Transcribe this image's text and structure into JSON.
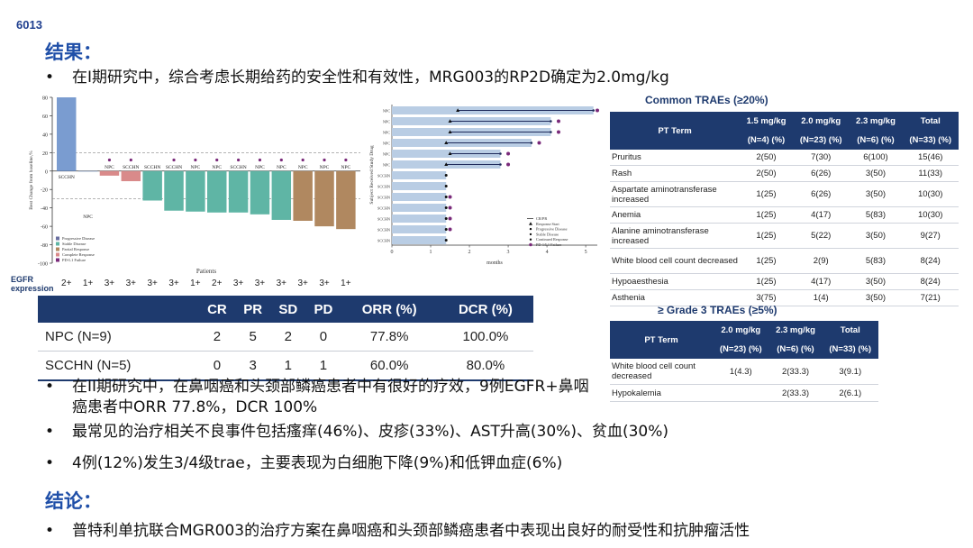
{
  "slide_id": "6013",
  "results_title": "结果：",
  "bullet_main": "在I期研究中，综合考虑长期给药的安全性和有效性，MRG003的RP2D确定为2.0mg/kg",
  "waterfall": {
    "ylabel": "Best Change from baseline,%",
    "xlabel": "Patients",
    "y_ticks": [
      "80",
      "60",
      "40",
      "20",
      "0",
      "-20",
      "-40",
      "-60",
      "-80",
      "-100"
    ],
    "legend": [
      "Progressive Disease",
      "Stable Disease",
      "Partial Response",
      "Complete Response",
      "PD-L1 Failure"
    ],
    "egfr_label": "EGFR\nexpression",
    "egfr_values": [
      "2+",
      "1+",
      "3+",
      "3+",
      "3+",
      "3+",
      "1+",
      "2+",
      "3+",
      "3+",
      "3+",
      "3+",
      "3+",
      "1+"
    ]
  },
  "swimmer": {
    "ylabel": "Subject Received Study Drug",
    "xlabel": "months",
    "x_ticks": [
      "0",
      "1",
      "2",
      "3",
      "4",
      "5"
    ],
    "legend": [
      "CR/PR",
      "Response Start",
      "Progressive Disease",
      "Stable Disease",
      "Continued Response",
      "PD-1/L1 Failure"
    ]
  },
  "chart_data": [
    {
      "type": "bar",
      "title": "",
      "xlabel": "Patients",
      "ylabel": "Best Change from baseline,%",
      "ylim": [
        -100,
        80
      ],
      "categories": [
        "SCCHN",
        "NPC",
        "NPC",
        "SCCHN",
        "SCCHN",
        "SCCHN",
        "NPC",
        "NPC",
        "SCCHN",
        "NPC",
        "NPC",
        "NPC",
        "NPC",
        "NPC"
      ],
      "values": [
        80,
        0,
        -5,
        -11,
        -32,
        -43,
        -44,
        -45,
        -45,
        -47,
        -53,
        -54,
        -60,
        -63
      ],
      "bar_colors": [
        "#7a9cd0",
        "#7a9cd0",
        "#d98a8a",
        "#d98a8a",
        "#5fb5a5",
        "#5fb5a5",
        "#5fb5a5",
        "#5fb5a5",
        "#5fb5a5",
        "#5fb5a5",
        "#5fb5a5",
        "#b08860",
        "#b08860",
        "#b08860"
      ],
      "pdl1_failure_markers": [
        false,
        false,
        true,
        true,
        false,
        true,
        true,
        true,
        true,
        true,
        true,
        true,
        true,
        true
      ],
      "reference_lines": [
        20,
        -30
      ],
      "grid": false,
      "legend_position": "bottom-left"
    },
    {
      "type": "bar",
      "title": "",
      "xlabel": "months",
      "ylabel": "Subject Received Study Drug",
      "xlim": [
        0,
        5.3
      ],
      "categories": [
        "NPC",
        "NPC",
        "NPC",
        "NPC",
        "NPC",
        "NPC",
        "SCCHN",
        "SCCHN",
        "SCCHN",
        "SCCHN",
        "SCCHN",
        "SCCHN",
        "SCCHN"
      ],
      "values": [
        5.2,
        4.1,
        4.1,
        3.6,
        2.8,
        2.8,
        1.4,
        1.4,
        1.4,
        1.4,
        1.4,
        1.4,
        1.4
      ],
      "response_start": [
        1.7,
        1.5,
        1.5,
        1.4,
        1.5,
        1.4,
        null,
        null,
        null,
        null,
        null,
        null,
        null
      ],
      "pd1_failure": [
        5.3,
        4.3,
        4.3,
        3.8,
        3.0,
        3.0,
        null,
        null,
        1.5,
        1.5,
        1.5,
        1.5,
        null
      ],
      "legend_position": "right"
    }
  ],
  "resp_table": {
    "headers": [
      "",
      "CR",
      "PR",
      "SD",
      "PD",
      "ORR (%)",
      "DCR (%)"
    ],
    "rows": [
      [
        "NPC (N=9)",
        "2",
        "5",
        "2",
        "0",
        "77.8%",
        "100.0%"
      ],
      [
        "SCCHN (N=5)",
        "0",
        "3",
        "1",
        "1",
        "60.0%",
        "80.0%"
      ]
    ]
  },
  "traes": {
    "title": "Common TRAEs (≥20%)",
    "header_pt": "PT Term",
    "header_doses": [
      "1.5 mg/kg",
      "2.0 mg/kg",
      "2.3 mg/kg",
      "Total"
    ],
    "header_ns": [
      "(N=4) (%)",
      "(N=23) (%)",
      "(N=6) (%)",
      "(N=33) (%)"
    ],
    "rows": [
      [
        "Pruritus",
        "2(50)",
        "7(30)",
        "6(100)",
        "15(46)"
      ],
      [
        "Rash",
        "2(50)",
        "6(26)",
        "3(50)",
        "11(33)"
      ],
      [
        "Aspartate aminotransferase increased",
        "1(25)",
        "6(26)",
        "3(50)",
        "10(30)"
      ],
      [
        "Anemia",
        "1(25)",
        "4(17)",
        "5(83)",
        "10(30)"
      ],
      [
        "Alanine aminotransferase increased",
        "1(25)",
        "5(22)",
        "3(50)",
        "9(27)"
      ],
      [
        "White blood cell count decreased",
        "1(25)",
        "2(9)",
        "5(83)",
        "8(24)"
      ],
      [
        "Hypoaesthesia",
        "1(25)",
        "4(17)",
        "3(50)",
        "8(24)"
      ],
      [
        "Asthenia",
        "3(75)",
        "1(4)",
        "3(50)",
        "7(21)"
      ]
    ]
  },
  "grade3": {
    "title": "≥ Grade 3 TRAEs (≥5%)",
    "header_pt": "PT Term",
    "header_doses": [
      "2.0 mg/kg",
      "2.3 mg/kg",
      "Total"
    ],
    "header_ns": [
      "(N=23) (%)",
      "(N=6) (%)",
      "(N=33) (%)"
    ],
    "rows": [
      [
        "White blood cell count decreased",
        "1(4.3)",
        "2(33.3)",
        "3(9.1)"
      ],
      [
        "Hypokalemia",
        "",
        "2(33.3)",
        "2(6.1)"
      ]
    ]
  },
  "bullets": [
    "在II期研究中，在鼻咽癌和头颈部鳞癌患者中有很好的疗效，9例EGFR+鼻咽癌患者中ORR 77.8%，DCR 100%",
    "最常见的治疗相关不良事件包括瘙痒(46%)、皮疹(33%)、AST升高(30%)、贫血(30%)",
    "4例(12%)发生3/4级trae，主要表现为白细胞下降(9%)和低钾血症(6%)"
  ],
  "conclusion_title": "结论：",
  "conclusion_bullet": "普特利单抗联合MGR003的治疗方案在鼻咽癌和头颈部鳞癌患者中表现出良好的耐受性和抗肿瘤活性",
  "bullet_symbol": "•"
}
